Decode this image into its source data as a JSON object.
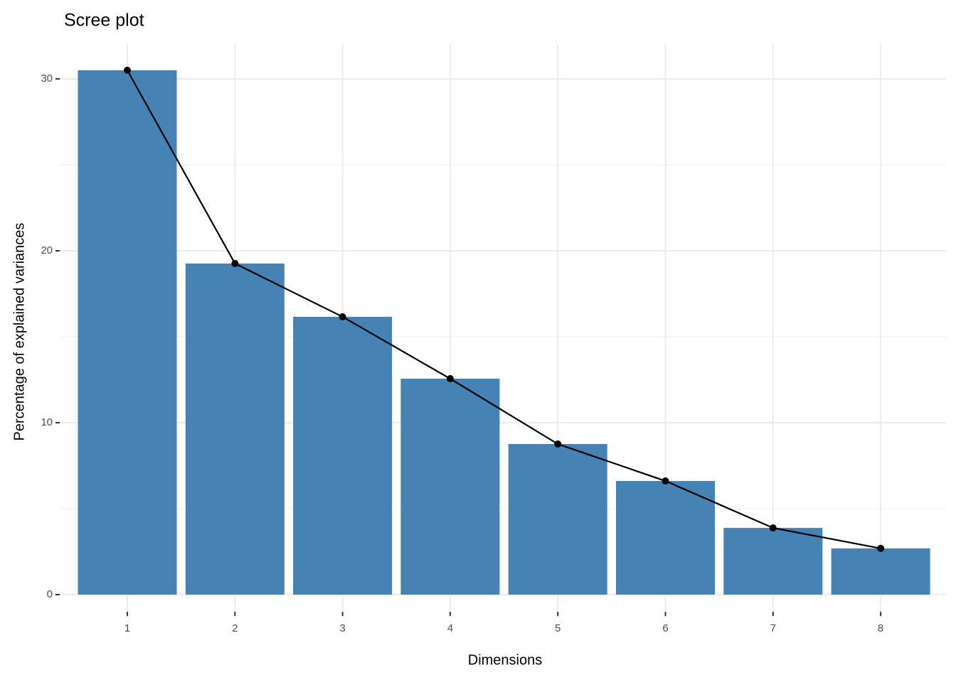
{
  "chart_data": {
    "type": "bar",
    "title": "Scree plot",
    "x_label": "Dimensions",
    "y_label": "Percentage of explained variances",
    "categories": [
      "1",
      "2",
      "3",
      "4",
      "5",
      "6",
      "7",
      "8"
    ],
    "values": [
      30.5,
      19.26,
      16.16,
      12.56,
      8.76,
      6.61,
      3.88,
      2.69
    ],
    "color": "#4682b4",
    "line_color": "#000000",
    "ylim": [
      -1,
      32
    ],
    "yticks": [
      0,
      10,
      20,
      30
    ],
    "grid": true
  }
}
